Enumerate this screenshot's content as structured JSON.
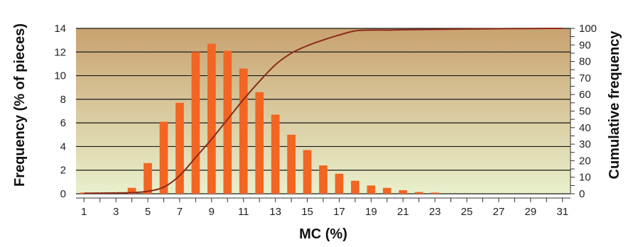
{
  "chart_data": {
    "type": "bar",
    "title": "",
    "xlabel": "MC (%)",
    "ylabel": "Frequency (% of pieces)",
    "ylabel_right": "Cumulative frequency",
    "x_tick_labels": [
      "1",
      "3",
      "5",
      "7",
      "9",
      "11",
      "13",
      "15",
      "17",
      "19",
      "21",
      "23",
      "25",
      "27",
      "29",
      "31"
    ],
    "y_tick_labels": [
      "0",
      "2",
      "4",
      "6",
      "8",
      "10",
      "12",
      "14"
    ],
    "y2_tick_labels": [
      "0",
      "10",
      "20",
      "30",
      "40",
      "50",
      "60",
      "70",
      "80",
      "90",
      "100"
    ],
    "xlim": [
      0.5,
      31.5
    ],
    "ylim": [
      0,
      14
    ],
    "y2lim": [
      0,
      100
    ],
    "grid": true,
    "categories": [
      1,
      2,
      3,
      4,
      5,
      6,
      7,
      8,
      9,
      10,
      11,
      12,
      13,
      14,
      15,
      16,
      17,
      18,
      19,
      20,
      21,
      22,
      23,
      24,
      25,
      26,
      27,
      28,
      29,
      30,
      31
    ],
    "values": [
      0.1,
      0,
      0,
      0.5,
      2.6,
      6.1,
      7.7,
      12.0,
      12.7,
      12.1,
      10.6,
      8.6,
      6.7,
      5.0,
      3.7,
      2.4,
      1.7,
      1.1,
      0.7,
      0.5,
      0.3,
      0.15,
      0.1,
      0,
      0,
      0,
      0,
      0,
      0,
      0,
      0
    ],
    "cumulative": {
      "x": [
        1,
        2,
        3,
        4,
        5,
        6,
        7,
        8,
        9,
        10,
        11,
        12,
        13,
        14,
        15,
        16,
        17,
        18,
        19,
        20,
        21,
        22,
        23,
        24,
        25,
        26,
        27,
        28,
        29,
        30,
        31
      ],
      "y": [
        0.3,
        0.4,
        0.5,
        0.7,
        1.5,
        4,
        11,
        22,
        33,
        45,
        57,
        68,
        78,
        85,
        89.5,
        93,
        96,
        98.5,
        99,
        99,
        99.2,
        99.3,
        99.4,
        99.5,
        99.6,
        99.7,
        99.8,
        99.9,
        99.9,
        100,
        100
      ]
    },
    "colors": {
      "bar": "#f26522",
      "cumulative_line": "#8b2b1a",
      "background_top": "#c9a26f",
      "background_bottom": "#e9f0cc",
      "gridline": "#1a1a1a"
    }
  }
}
